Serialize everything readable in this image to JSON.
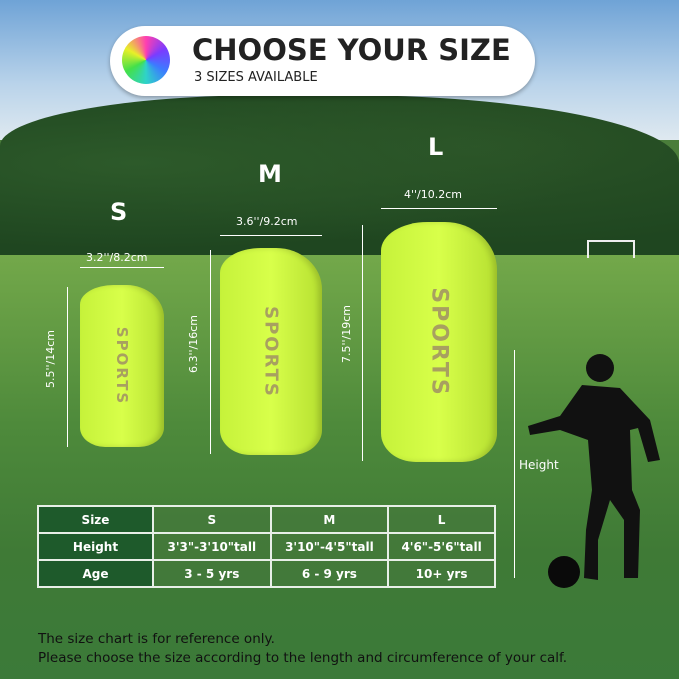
{
  "header": {
    "title": "CHOOSE YOUR SIZE",
    "subtitle": "3 SIZES AVAILABLE"
  },
  "guards": [
    {
      "size": "S",
      "width": "3.2''/8.2cm",
      "length": "5.5''/14cm",
      "brand": "SPORTS"
    },
    {
      "size": "M",
      "width": "3.6''/9.2cm",
      "length": "6.3''/16cm",
      "brand": "SPORTS"
    },
    {
      "size": "L",
      "width": "4''/10.2cm",
      "length": "7.5''/19cm",
      "brand": "SPORTS"
    }
  ],
  "height_label": "Height",
  "table": {
    "rows": [
      [
        "Size",
        "S",
        "M",
        "L"
      ],
      [
        "Height",
        "3'3\"-3'10\"tall",
        "3'10\"-4'5\"tall",
        "4'6\"-5'6\"tall"
      ],
      [
        "Age",
        "3 - 5 yrs",
        "6 - 9 yrs",
        "10+ yrs"
      ]
    ]
  },
  "note": {
    "line1": "The size chart is for reference only.",
    "line2": "Please choose the size according to the length and circumference of your calf."
  },
  "colors": {
    "guard": "#d0fa3c",
    "table_header": "#1e5a2b"
  }
}
